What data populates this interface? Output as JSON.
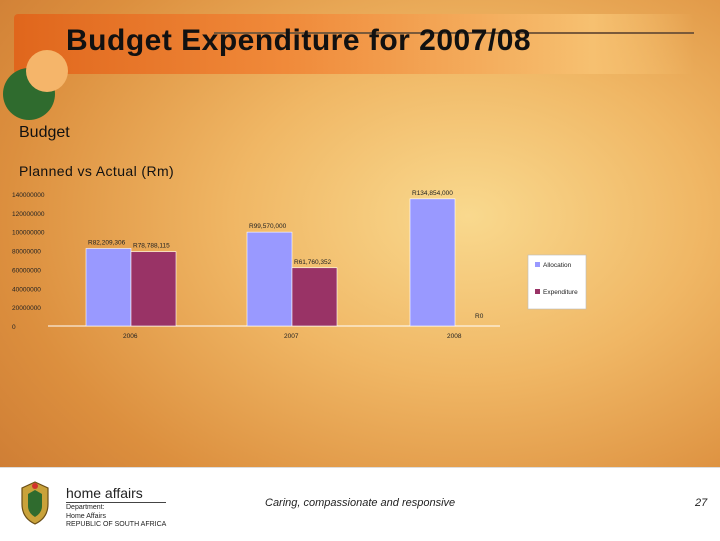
{
  "slide": {
    "title": "Budget Expenditure for 2007/08",
    "heading": "Budget",
    "subheading": "Planned vs Actual (Rm)"
  },
  "chart_data": {
    "type": "bar",
    "categories": [
      "2006",
      "2007",
      "2008"
    ],
    "series": [
      {
        "name": "Allocation",
        "color": "#9999ff",
        "values": [
          82209306,
          99570000,
          134854000
        ]
      },
      {
        "name": "Expenditure",
        "color": "#993366",
        "values": [
          78788115,
          61760352,
          0
        ]
      }
    ],
    "data_labels": [
      [
        "R82,209,306",
        "R78,788,115"
      ],
      [
        "R99,570,000",
        "R61,760,352"
      ],
      [
        "R134,854,000",
        "R0"
      ]
    ],
    "yticks": [
      "0",
      "20000000",
      "40000000",
      "60000000",
      "80000000",
      "100000000",
      "120000000",
      "140000000"
    ],
    "ylim": [
      0,
      140000000
    ],
    "legend_position": "right",
    "grid": false
  },
  "footer": {
    "brand": "home affairs",
    "department": "Department:\nHome Affairs\nREPUBLIC OF SOUTH AFRICA",
    "tagline": "Caring, compassionate and responsive",
    "page_number": "27"
  }
}
